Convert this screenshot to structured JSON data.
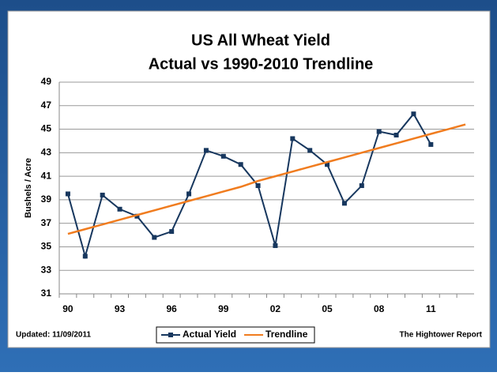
{
  "chart_data": {
    "type": "line",
    "title": [
      "US All Wheat Yield",
      "Actual vs 1990-2010 Trendline"
    ],
    "y_label": "Bushels / Acre",
    "footer_left": "Updated: 11/09/2011",
    "footer_right": "The Hightower Report",
    "categories": [
      "90",
      null,
      null,
      "93",
      null,
      null,
      "96",
      null,
      null,
      "99",
      null,
      null,
      "02",
      null,
      null,
      "05",
      null,
      null,
      "08",
      null,
      null,
      "11",
      null,
      null
    ],
    "series": [
      {
        "name": "Actual Yield",
        "color": "#17375e",
        "marker": "square",
        "values": [
          39.5,
          34.2,
          39.4,
          38.2,
          37.6,
          35.8,
          36.3,
          39.5,
          43.2,
          42.7,
          42.0,
          40.2,
          35.1,
          44.2,
          43.2,
          42.0,
          38.7,
          40.2,
          44.8,
          44.5,
          46.3,
          43.7,
          null,
          null
        ]
      },
      {
        "name": "Trendline",
        "color": "#f07c1f",
        "values": [
          36.1,
          36.5,
          36.9,
          37.3,
          37.7,
          38.1,
          38.5,
          38.9,
          39.3,
          39.7,
          40.1,
          40.6,
          41.0,
          41.4,
          41.8,
          42.2,
          42.6,
          43.0,
          43.4,
          43.8,
          44.2,
          44.6,
          45.0,
          45.4
        ]
      }
    ],
    "ylim": [
      31,
      49
    ],
    "yticks": [
      31,
      33,
      35,
      37,
      39,
      41,
      43,
      45,
      47,
      49
    ],
    "grid": true,
    "legend": "bottom"
  }
}
